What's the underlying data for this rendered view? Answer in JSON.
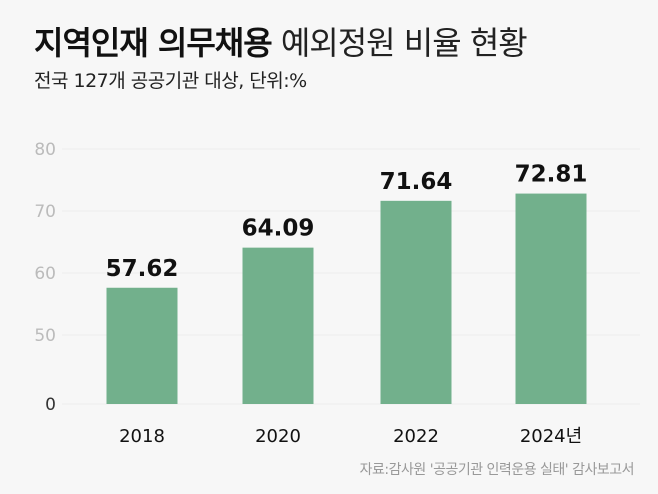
{
  "chart_data": {
    "type": "bar",
    "title_bold": "지역인재 의무채용",
    "title_light": "예외정원 비율 현황",
    "subtitle": "전국 127개 공공기관 대상, 단위:%",
    "categories": [
      "2018",
      "2020",
      "2022",
      "2024년"
    ],
    "values": [
      57.62,
      64.09,
      71.64,
      72.81
    ],
    "value_labels": [
      "57.62",
      "64.09",
      "71.64",
      "72.81"
    ],
    "yticks": [
      "80",
      "70",
      "60",
      "50",
      "0"
    ],
    "ylim": [
      0,
      80
    ],
    "axis_break": "0–50 truncated",
    "grid": true,
    "source": "자료:감사원 '공공기관 인력운용 실태' 감사보고서",
    "colors": {
      "bar": "#72b08c",
      "background": "#f7f7f7",
      "tick": "#bbbbbb"
    }
  }
}
